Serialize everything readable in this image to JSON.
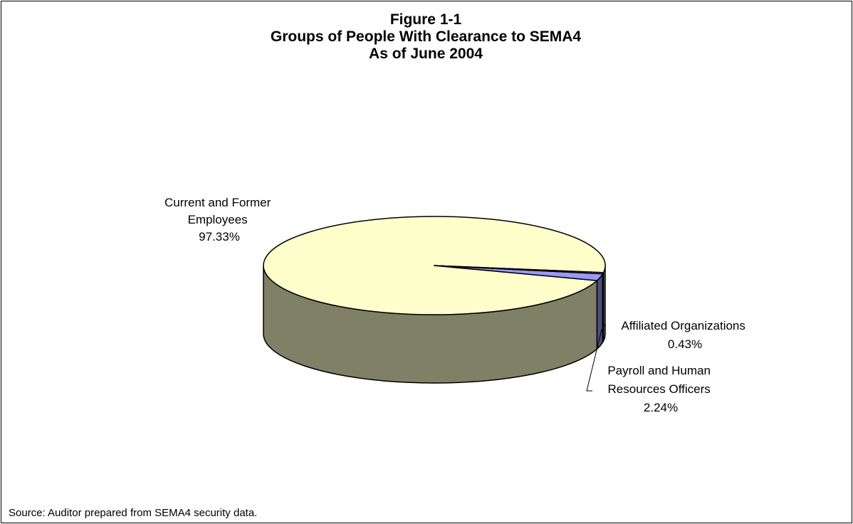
{
  "chart_data": {
    "type": "pie",
    "title_lines": [
      "Figure 1-1",
      "Groups of People With Clearance to SEMA4",
      "As of June 2004"
    ],
    "slices": [
      {
        "label_lines": [
          "Current and Former",
          "Employees"
        ],
        "percent_label": "97.33%",
        "value": 97.33,
        "top_color": "#FFFFCC",
        "side_color": "#808066"
      },
      {
        "label_lines": [
          "Payroll and Human",
          "Resources Officers"
        ],
        "percent_label": "2.24%",
        "value": 2.24,
        "top_color": "#9999FF",
        "side_color": "#4D4D80"
      },
      {
        "label_lines": [
          "Affiliated Organizations"
        ],
        "percent_label": "0.43%",
        "value": 0.43,
        "top_color": "#FFFFFF",
        "side_color": "#808080"
      }
    ],
    "style": "3d-pie",
    "legend": "none"
  },
  "source_text": "Source:  Auditor prepared from SEMA4 security data."
}
